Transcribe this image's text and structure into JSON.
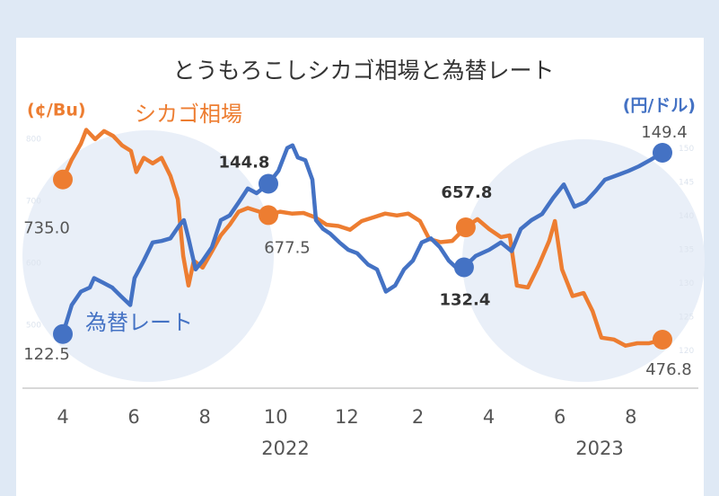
{
  "chart_data": {
    "type": "line",
    "title": "とうもろこしシカゴ相場と為替レート",
    "y_label": "(¢/Bu)",
    "y2_label": "(円/ドル)",
    "xlim": [
      -0.3,
      17.3
    ],
    "xticks": [
      {
        "value": 0,
        "label": "4"
      },
      {
        "value": 2,
        "label": "6"
      },
      {
        "value": 4,
        "label": "8"
      },
      {
        "value": 6,
        "label": "10"
      },
      {
        "value": 8,
        "label": "12"
      },
      {
        "value": 10,
        "label": "2"
      },
      {
        "value": 12,
        "label": "4"
      },
      {
        "value": 14,
        "label": "6"
      },
      {
        "value": 16,
        "label": "8"
      }
    ],
    "year_labels": [
      {
        "x": 6.27,
        "text": "2022"
      },
      {
        "x": 15.12,
        "text": "2023"
      }
    ],
    "ylim": [
      400,
      865
    ],
    "yticks": [
      500,
      600,
      700,
      800
    ],
    "y2lim": [
      114.6,
      157.4
    ],
    "y2ticks": [
      120,
      125,
      130,
      135,
      140,
      145,
      150
    ],
    "series": [
      {
        "name": "シカゴ相場",
        "color": "#ed7d31",
        "x": [
          0,
          0.25,
          0.51,
          0.66,
          0.91,
          1.16,
          1.42,
          1.67,
          1.92,
          2.07,
          2.28,
          2.53,
          2.78,
          3.03,
          3.24,
          3.39,
          3.54,
          3.69,
          3.94,
          4.2,
          4.45,
          4.7,
          4.95,
          5.21,
          5.54,
          5.79,
          6.12,
          6.45,
          6.78,
          7.11,
          7.43,
          7.76,
          8.09,
          8.42,
          8.75,
          9.08,
          9.41,
          9.73,
          10.06,
          10.32,
          10.64,
          10.97,
          11.35,
          11.68,
          12.01,
          12.34,
          12.59,
          12.79,
          13.1,
          13.4,
          13.7,
          13.86,
          14.06,
          14.36,
          14.67,
          14.92,
          15.17,
          15.52,
          15.85,
          16.18,
          16.51,
          16.89
        ],
        "values": [
          735,
          767,
          793,
          815,
          800,
          813,
          805,
          790,
          781,
          747,
          770,
          761,
          770,
          741,
          703,
          612,
          564,
          604,
          593,
          619,
          645,
          662,
          683,
          689,
          683,
          677.5,
          683,
          680,
          681,
          674,
          662,
          660,
          654,
          668,
          674,
          680,
          677,
          680,
          668,
          639,
          634,
          636,
          657.8,
          671,
          655,
          642,
          645,
          564,
          561,
          596,
          636,
          668,
          590,
          547,
          552,
          523,
          480,
          477,
          467,
          471,
          471,
          476.8
        ],
        "highlights": [
          {
            "x": 0,
            "value": 735,
            "label": "735.0"
          },
          {
            "x": 5.79,
            "value": 677.5,
            "label": "677.5"
          },
          {
            "x": 11.35,
            "value": 657.8,
            "label": "657.8"
          },
          {
            "x": 16.89,
            "value": 476.8,
            "label": "476.8"
          }
        ]
      },
      {
        "name": "為替レート",
        "color": "#4472c4",
        "axis": "y2",
        "x": [
          0,
          0.25,
          0.51,
          0.76,
          0.88,
          1.14,
          1.39,
          1.64,
          1.9,
          2.02,
          2.28,
          2.53,
          2.78,
          3.03,
          3.29,
          3.41,
          3.54,
          3.74,
          3.94,
          4.2,
          4.45,
          4.7,
          4.96,
          5.21,
          5.46,
          5.79,
          6.07,
          6.32,
          6.47,
          6.62,
          6.83,
          7.03,
          7.13,
          7.33,
          7.53,
          7.79,
          8.04,
          8.29,
          8.6,
          8.85,
          9.1,
          9.36,
          9.61,
          9.86,
          10.11,
          10.37,
          10.62,
          10.87,
          11.13,
          11.3,
          11.63,
          12.01,
          12.34,
          12.64,
          12.9,
          13.2,
          13.5,
          13.81,
          14.11,
          14.41,
          14.72,
          15.02,
          15.27,
          15.63,
          15.93,
          16.23,
          16.54,
          16.89
        ],
        "values": [
          122.5,
          126.8,
          128.8,
          129.4,
          130.8,
          130.1,
          129.4,
          128.1,
          126.8,
          130.8,
          133.4,
          136.1,
          136.3,
          136.7,
          138.7,
          139.4,
          136.7,
          132.1,
          133.4,
          135.4,
          139.4,
          140.1,
          142.1,
          144.1,
          143.4,
          144.8,
          146.7,
          150.1,
          150.5,
          148.7,
          148.3,
          145.4,
          139.4,
          138.1,
          137.4,
          136.1,
          135,
          134.5,
          132.8,
          132.1,
          128.8,
          129.7,
          132.1,
          133.4,
          136.1,
          136.7,
          135.4,
          133.4,
          132.1,
          132.4,
          134.1,
          135,
          136.1,
          134.8,
          138.1,
          139.4,
          140.3,
          142.7,
          144.7,
          141.4,
          142.1,
          143.8,
          145.4,
          146.1,
          146.7,
          147.4,
          148.3,
          149.4
        ],
        "highlights": [
          {
            "x": 0,
            "value": 122.5,
            "label": "122.5"
          },
          {
            "x": 5.79,
            "value": 144.8,
            "label": "144.8"
          },
          {
            "x": 11.3,
            "value": 132.4,
            "label": "132.4"
          },
          {
            "x": 16.89,
            "value": 149.4,
            "label": "149.4"
          }
        ]
      }
    ]
  }
}
